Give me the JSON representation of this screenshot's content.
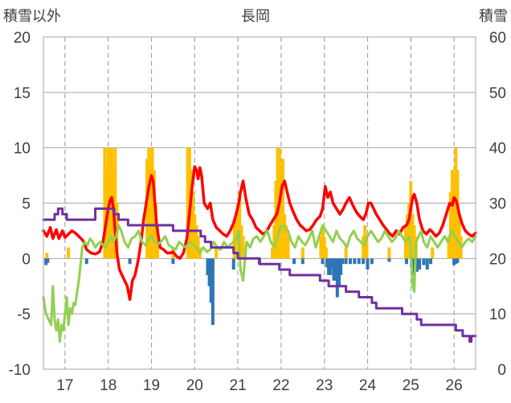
{
  "chart_data": {
    "type": "bar+line",
    "title": "長岡",
    "ylabel_left": "積雪以外",
    "ylabel_right": "積雪",
    "xlim": [
      16.5,
      26.5
    ],
    "ylim_left": [
      -10,
      20
    ],
    "ylim_right": [
      0,
      60
    ],
    "x_ticks": [
      17,
      18,
      19,
      20,
      21,
      22,
      23,
      24,
      25,
      26
    ],
    "x_tick_labels": [
      "17",
      "18",
      "19",
      "20",
      "21",
      "22",
      "23",
      "24",
      "25",
      "26"
    ],
    "y_ticks_left": [
      -10,
      -5,
      0,
      5,
      10,
      15,
      20
    ],
    "y_tick_labels_left": [
      "-10",
      "-5",
      "0",
      "5",
      "10",
      "15",
      "20"
    ],
    "y_ticks_right": [
      0,
      10,
      20,
      30,
      40,
      50,
      60
    ],
    "y_tick_labels_right": [
      "0",
      "10",
      "20",
      "30",
      "40",
      "50",
      "60"
    ],
    "grid": {
      "vertical": "dashed",
      "horizontal": "solid"
    },
    "colors": {
      "precip_bars": "#ffc000",
      "snow_change_bars": "#2e75b6",
      "temperature_line": "#ff0000",
      "green_line": "#92d050",
      "snow_depth_line": "#7030a0",
      "grid": "#a6a6a6",
      "axis_text": "#404040"
    },
    "series": [
      {
        "kind": "bar",
        "axis": "left",
        "color": "#ffc000",
        "x": [
          16.58,
          17.08,
          17.92,
          17.96,
          18.0,
          18.04,
          18.08,
          18.12,
          18.16,
          18.2,
          18.9,
          18.94,
          18.98,
          19.02,
          19.06,
          19.1,
          19.14,
          19.5,
          19.84,
          19.88,
          19.92,
          19.96,
          20.0,
          20.04,
          20.08,
          20.12,
          20.5,
          20.92,
          20.96,
          21.0,
          21.04,
          21.08,
          21.12,
          21.8,
          21.84,
          21.88,
          21.92,
          21.96,
          22.0,
          22.04,
          22.08,
          22.12,
          22.16,
          22.5,
          22.92,
          22.96,
          23.0,
          23.04,
          23.5,
          23.9,
          23.94,
          23.98,
          24.5,
          24.88,
          24.92,
          24.96,
          25.0,
          25.04,
          25.08,
          25.12,
          25.5,
          25.88,
          25.92,
          25.96,
          26.0,
          26.04,
          26.08,
          26.12,
          26.16
        ],
        "values": [
          0.5,
          1,
          10,
          8,
          10,
          10,
          10,
          8,
          10,
          5,
          9,
          10,
          10,
          10,
          8,
          5,
          3,
          1,
          10,
          10,
          8,
          6,
          4,
          3,
          2,
          1,
          1,
          3,
          4,
          5,
          6,
          3,
          2,
          1,
          3,
          7,
          10,
          10,
          8,
          9,
          4,
          3,
          2,
          1,
          2,
          3,
          2,
          1,
          1,
          2,
          3,
          2,
          1,
          3,
          4,
          5,
          7,
          4,
          3,
          2,
          1,
          2,
          6,
          8,
          7,
          10,
          8,
          4,
          2
        ]
      },
      {
        "kind": "bar",
        "axis": "left",
        "color": "#2e75b6",
        "x": [
          16.56,
          16.6,
          17.5,
          18.5,
          19.5,
          20.3,
          20.34,
          20.38,
          20.42,
          20.9,
          21.5,
          22.3,
          22.5,
          22.96,
          23.06,
          23.1,
          23.14,
          23.18,
          23.22,
          23.26,
          23.3,
          23.34,
          23.38,
          23.42,
          23.5,
          23.6,
          23.7,
          23.8,
          23.9,
          24.0,
          24.1,
          24.5,
          24.9,
          25.02,
          25.06,
          25.1,
          25.14,
          25.2,
          25.3,
          25.38,
          25.46,
          26.0,
          26.04,
          26.08
        ],
        "values": [
          -0.6,
          -0.4,
          -0.5,
          -0.5,
          -0.5,
          -1.5,
          -2.5,
          -4,
          -6,
          -1,
          -0.5,
          -0.5,
          -0.5,
          -0.5,
          -0.8,
          -1.5,
          -1.5,
          -0.8,
          -2,
          -2,
          -3.5,
          -2.5,
          -1.5,
          -0.5,
          -0.5,
          -0.5,
          -0.5,
          -0.5,
          -0.5,
          -1,
          -0.5,
          -0.3,
          -0.5,
          -0.8,
          -1.5,
          -1.2,
          -1.2,
          -1,
          -0.6,
          -1,
          -0.5,
          -0.6,
          -0.5,
          -0.4
        ]
      },
      {
        "kind": "line",
        "axis": "left",
        "color": "#ff0000",
        "x": [
          16.5,
          16.58,
          16.66,
          16.72,
          16.8,
          16.86,
          16.94,
          17.0,
          17.08,
          17.16,
          17.24,
          17.32,
          17.42,
          17.5,
          17.6,
          17.7,
          17.8,
          17.88,
          17.94,
          18.0,
          18.04,
          18.08,
          18.12,
          18.16,
          18.2,
          18.26,
          18.32,
          18.38,
          18.44,
          18.5,
          18.56,
          18.62,
          18.66,
          18.7,
          18.76,
          18.82,
          18.88,
          18.94,
          19.0,
          19.04,
          19.08,
          19.12,
          19.2,
          19.28,
          19.36,
          19.44,
          19.5,
          19.58,
          19.66,
          19.74,
          19.82,
          19.88,
          19.94,
          20.0,
          20.04,
          20.08,
          20.12,
          20.16,
          20.22,
          20.3,
          20.36,
          20.42,
          20.5,
          20.58,
          20.66,
          20.74,
          20.82,
          20.9,
          20.96,
          21.02,
          21.06,
          21.12,
          21.18,
          21.26,
          21.34,
          21.42,
          21.5,
          21.58,
          21.66,
          21.74,
          21.82,
          21.9,
          21.96,
          22.02,
          22.08,
          22.14,
          22.2,
          22.28,
          22.36,
          22.44,
          22.5,
          22.58,
          22.66,
          22.74,
          22.82,
          22.9,
          22.96,
          23.02,
          23.08,
          23.14,
          23.2,
          23.28,
          23.36,
          23.44,
          23.5,
          23.58,
          23.66,
          23.74,
          23.82,
          23.9,
          23.96,
          24.02,
          24.08,
          24.14,
          24.2,
          24.28,
          24.36,
          24.44,
          24.5,
          24.58,
          24.66,
          24.74,
          24.82,
          24.9,
          24.96,
          25.0,
          25.04,
          25.08,
          25.14,
          25.2,
          25.28,
          25.36,
          25.44,
          25.5,
          25.58,
          25.66,
          25.74,
          25.82,
          25.9,
          25.96,
          26.0,
          26.04,
          26.08,
          26.12,
          26.18,
          26.26,
          26.34,
          26.42,
          26.5
        ],
        "values": [
          2.5,
          2.0,
          2.8,
          1.8,
          2.6,
          1.8,
          2.5,
          1.9,
          2.2,
          2.5,
          2.3,
          2.0,
          1.6,
          0.8,
          0.5,
          0.4,
          0.6,
          1.5,
          3.0,
          4.5,
          5.2,
          5.5,
          4.5,
          2.5,
          0.5,
          -1.0,
          -1.5,
          -2.0,
          -2.5,
          -3.7,
          -2.0,
          -1.5,
          -0.8,
          0.0,
          1.5,
          3.5,
          5.0,
          6.5,
          7.5,
          7.0,
          5.0,
          3.0,
          1.0,
          0.8,
          0.5,
          0.5,
          0.6,
          0.2,
          0.0,
          0.5,
          1.8,
          4.0,
          6.5,
          8.3,
          8.0,
          7.2,
          8.2,
          7.5,
          5.0,
          4.5,
          5.0,
          3.5,
          2.8,
          2.5,
          2.2,
          2.0,
          2.5,
          3.2,
          4.0,
          5.0,
          6.0,
          7.0,
          5.5,
          4.0,
          3.5,
          2.8,
          2.5,
          2.2,
          2.4,
          3.0,
          3.5,
          4.0,
          5.0,
          6.5,
          7.0,
          6.0,
          5.0,
          4.2,
          3.5,
          3.0,
          2.8,
          2.5,
          2.6,
          3.0,
          3.5,
          3.8,
          4.5,
          6.5,
          5.5,
          6.0,
          5.0,
          4.5,
          4.0,
          4.5,
          5.0,
          5.5,
          4.8,
          4.2,
          3.8,
          3.5,
          4.0,
          5.0,
          5.0,
          4.5,
          4.0,
          3.5,
          3.0,
          2.6,
          2.3,
          2.0,
          2.5,
          2.2,
          2.8,
          3.0,
          3.5,
          4.5,
          5.5,
          5.8,
          5.0,
          3.5,
          2.5,
          2.2,
          2.6,
          2.4,
          2.0,
          2.3,
          3.0,
          4.0,
          5.0,
          4.8,
          5.5,
          5.3,
          4.8,
          4.0,
          3.2,
          2.5,
          2.2,
          2.0,
          2.3
        ]
      },
      {
        "kind": "line",
        "axis": "left",
        "color": "#92d050",
        "x": [
          16.5,
          16.56,
          16.62,
          16.68,
          16.72,
          16.76,
          16.8,
          16.84,
          16.88,
          16.92,
          16.96,
          17.0,
          17.04,
          17.08,
          17.12,
          17.16,
          17.2,
          17.24,
          17.28,
          17.32,
          17.36,
          17.4,
          17.46,
          17.52,
          17.58,
          17.64,
          17.7,
          17.76,
          17.82,
          17.88,
          17.94,
          18.0,
          18.06,
          18.12,
          18.18,
          18.24,
          18.3,
          18.38,
          18.46,
          18.54,
          18.62,
          18.7,
          18.78,
          18.86,
          18.94,
          19.0,
          19.08,
          19.16,
          19.24,
          19.32,
          19.4,
          19.48,
          19.56,
          19.64,
          19.72,
          19.8,
          19.88,
          19.96,
          20.04,
          20.12,
          20.2,
          20.28,
          20.36,
          20.44,
          20.52,
          20.6,
          20.68,
          20.76,
          20.84,
          20.9,
          20.96,
          21.02,
          21.06,
          21.12,
          21.2,
          21.28,
          21.36,
          21.44,
          21.52,
          21.6,
          21.68,
          21.76,
          21.84,
          21.92,
          22.0,
          22.08,
          22.16,
          22.24,
          22.32,
          22.4,
          22.48,
          22.56,
          22.64,
          22.72,
          22.8,
          22.88,
          22.96,
          23.04,
          23.12,
          23.2,
          23.28,
          23.36,
          23.44,
          23.52,
          23.6,
          23.68,
          23.76,
          23.84,
          23.92,
          24.0,
          24.08,
          24.16,
          24.24,
          24.32,
          24.4,
          24.48,
          24.56,
          24.64,
          24.72,
          24.8,
          24.88,
          24.96,
          25.0,
          25.04,
          25.08,
          25.12,
          25.18,
          25.24,
          25.3,
          25.38,
          25.46,
          25.54,
          25.62,
          25.7,
          25.78,
          25.86,
          25.94,
          26.02,
          26.1,
          26.18,
          26.26,
          26.34,
          26.42,
          26.5
        ],
        "values": [
          -3.5,
          -5.0,
          -5.5,
          -6.0,
          -2.5,
          -5.5,
          -6.5,
          -5.5,
          -7.5,
          -6.0,
          -6.5,
          -5.0,
          -3.5,
          -6.0,
          -4.5,
          -5.0,
          -4.0,
          -4.2,
          -3.0,
          -2.0,
          -0.5,
          1.0,
          1.5,
          1.2,
          1.8,
          1.5,
          1.0,
          1.3,
          1.5,
          1.2,
          1.0,
          1.5,
          2.0,
          1.5,
          2.0,
          3.0,
          2.5,
          1.5,
          1.0,
          1.8,
          2.0,
          2.5,
          1.5,
          1.2,
          1.8,
          2.0,
          1.5,
          1.3,
          1.6,
          2.0,
          1.2,
          1.0,
          0.8,
          1.5,
          1.2,
          1.0,
          1.5,
          1.3,
          1.0,
          0.5,
          1.0,
          0.6,
          0.8,
          1.5,
          1.0,
          0.8,
          1.5,
          1.0,
          1.3,
          1.5,
          1.8,
          2.5,
          -1.0,
          -2.0,
          1.5,
          1.0,
          1.8,
          2.0,
          1.5,
          2.0,
          2.5,
          1.5,
          1.0,
          2.0,
          3.0,
          2.8,
          2.5,
          1.5,
          1.0,
          2.0,
          1.5,
          1.2,
          1.8,
          2.5,
          1.0,
          2.0,
          3.0,
          2.5,
          2.0,
          1.5,
          2.5,
          1.8,
          1.5,
          1.0,
          2.0,
          2.5,
          1.8,
          1.5,
          1.2,
          2.0,
          2.5,
          2.0,
          1.5,
          1.8,
          2.5,
          2.0,
          1.5,
          1.8,
          2.5,
          2.0,
          1.5,
          2.0,
          1.0,
          -2.5,
          -3.0,
          1.5,
          2.0,
          2.5,
          1.5,
          1.0,
          2.0,
          1.5,
          1.0,
          1.5,
          2.0,
          1.5,
          2.5,
          2.0,
          1.5,
          1.0,
          1.5,
          1.8,
          1.5,
          2.0
        ]
      },
      {
        "kind": "line",
        "axis": "right",
        "color": "#7030a0",
        "step": true,
        "x": [
          16.5,
          16.66,
          16.76,
          16.84,
          16.94,
          17.04,
          17.5,
          17.7,
          18.04,
          18.14,
          18.24,
          18.46,
          18.6,
          18.94,
          19.1,
          19.5,
          19.8,
          20.04,
          20.14,
          20.24,
          20.3,
          20.38,
          20.5,
          20.72,
          20.9,
          21.0,
          21.2,
          21.5,
          21.8,
          21.96,
          22.2,
          22.6,
          22.9,
          23.1,
          23.2,
          23.5,
          23.8,
          24.0,
          24.1,
          24.2,
          24.5,
          24.8,
          25.0,
          25.14,
          25.24,
          25.6,
          25.8,
          26.04,
          26.2,
          26.3,
          26.36,
          26.4,
          26.5
        ],
        "values": [
          27,
          27,
          28,
          29,
          28,
          27,
          27,
          29,
          29,
          28,
          27,
          26,
          26,
          26,
          26,
          25,
          25,
          25,
          24,
          23,
          23,
          22,
          22,
          22,
          21,
          20,
          20,
          19,
          19,
          18,
          17,
          17,
          16,
          15,
          15,
          14,
          13,
          13,
          12,
          11,
          11,
          10,
          10,
          9,
          8,
          8,
          8,
          7,
          6,
          6,
          5,
          6,
          6
        ]
      }
    ]
  }
}
